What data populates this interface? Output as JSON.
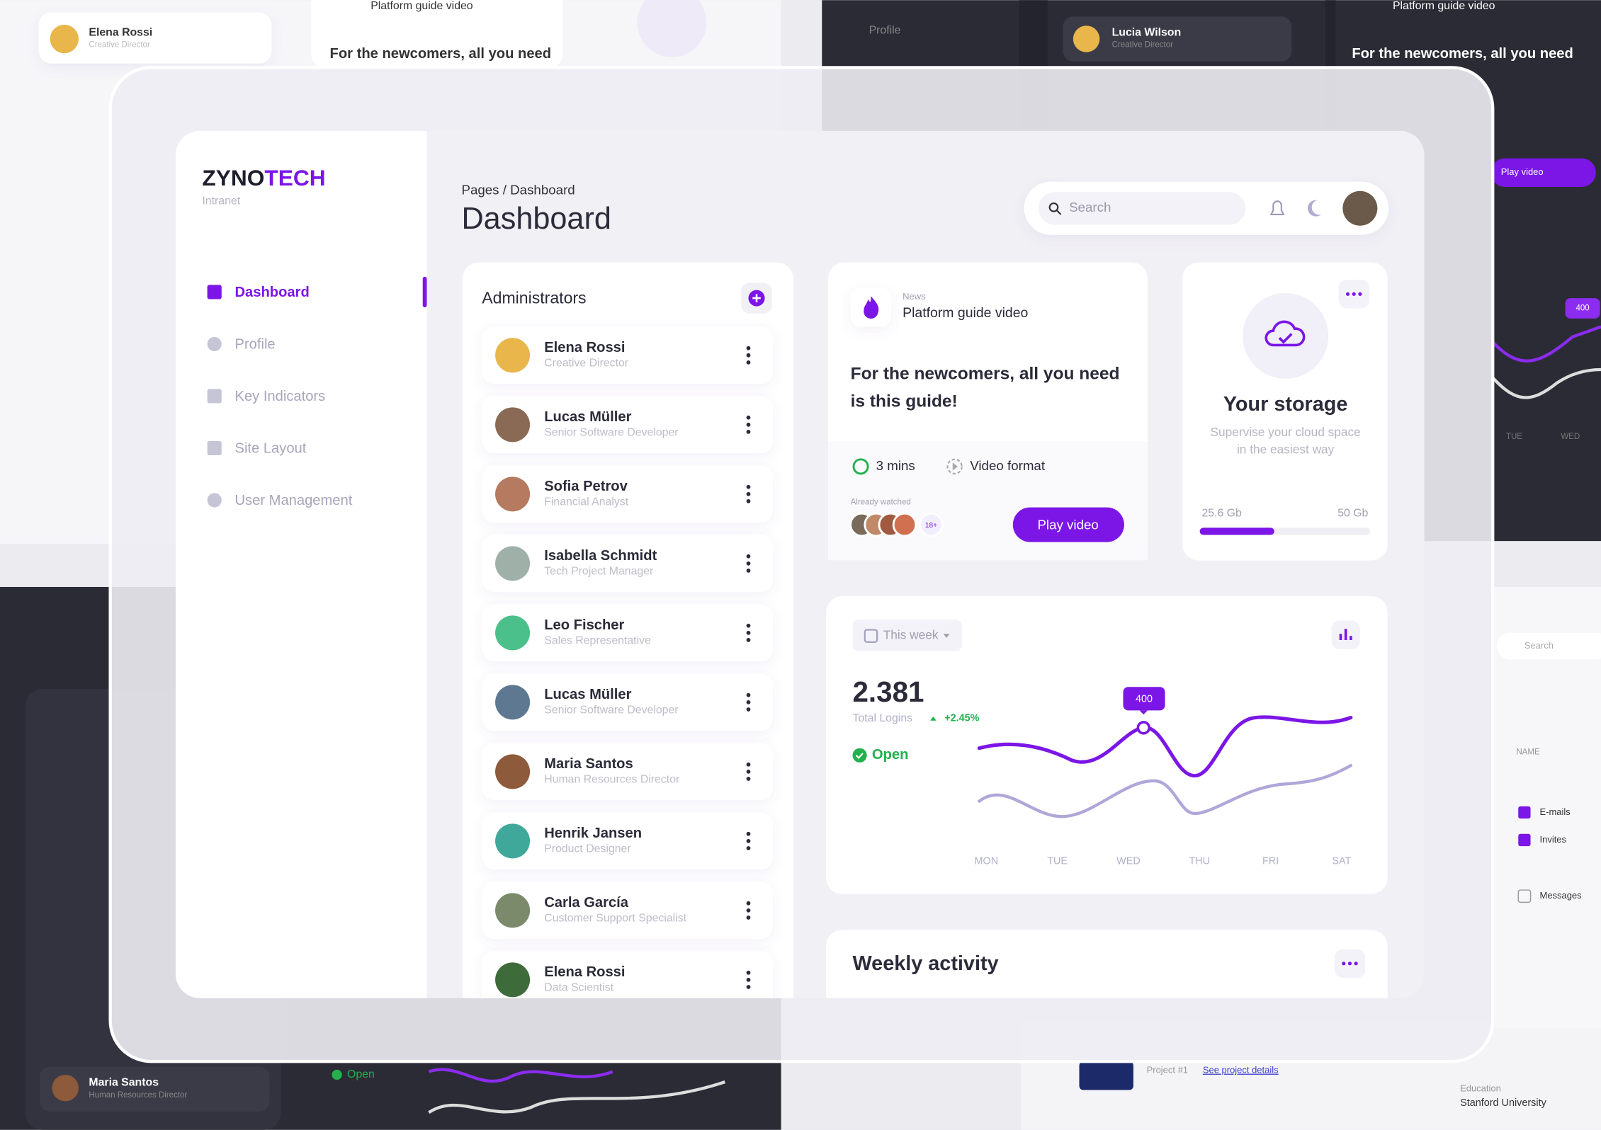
{
  "brand": {
    "name_a": "ZYNO",
    "name_b": "TECH",
    "subtitle": "Intranet"
  },
  "nav": [
    "Dashboard",
    "Profile",
    "Key Indicators",
    "Site Layout",
    "User Management"
  ],
  "header": {
    "breadcrumb": "Pages / Dashboard",
    "title": "Dashboard",
    "search_placeholder": "Search"
  },
  "administrators": {
    "title": "Administrators",
    "items": [
      {
        "name": "Elena Rossi",
        "role": "Creative Director"
      },
      {
        "name": "Lucas Müller",
        "role": "Senior Software Developer"
      },
      {
        "name": "Sofia Petrov",
        "role": "Financial Analyst"
      },
      {
        "name": "Isabella Schmidt",
        "role": "Tech Project Manager"
      },
      {
        "name": "Leo Fischer",
        "role": "Sales Representative"
      },
      {
        "name": "Lucas Müller",
        "role": "Senior Software Developer"
      },
      {
        "name": "Maria Santos",
        "role": "Human Resources Director"
      },
      {
        "name": "Henrik Jansen",
        "role": "Product Designer"
      },
      {
        "name": "Carla García",
        "role": "Customer Support Specialist"
      },
      {
        "name": "Elena Rossi",
        "role": "Data Scientist"
      }
    ]
  },
  "news": {
    "tag": "News",
    "title": "Platform guide video",
    "headline": [
      "For the newcomers, all you need",
      "is this guide!"
    ],
    "duration": "3 mins",
    "format": "Video format",
    "watched_label": "Already watched",
    "watched_more": "18+",
    "button": "Play video"
  },
  "storage": {
    "title": "Your storage",
    "description": [
      "Supervise your cloud space",
      "in the easiest way"
    ],
    "used": "25.6 Gb",
    "total": "50 Gb"
  },
  "logins": {
    "period": "This week",
    "value": "2.381",
    "label": "Total Logins",
    "change": "+2.45%",
    "status": "Open",
    "marker": "400",
    "days": [
      "MON",
      "TUE",
      "WED",
      "THU",
      "FRI",
      "SAT"
    ]
  },
  "weekly": {
    "title": "Weekly activity"
  },
  "background": {
    "top_card": {
      "name": "Elena Rossi",
      "role": "Creative Director"
    },
    "video_title": "Platform guide video",
    "headline_part": "For the newcomers, all you need",
    "profile": "Profile",
    "dark_card": {
      "name": "Lucia Wilson",
      "role": "Creative Director"
    },
    "play": "Play video",
    "marker": "400",
    "days": [
      "TUE",
      "WED"
    ],
    "bottom_card": {
      "name": "Maria Santos",
      "role": "Human Resources Director"
    },
    "open": "Open",
    "project": "Project #1",
    "project_link": "See project details",
    "education": "Education",
    "school": "Stanford University",
    "search": "Search",
    "column": "NAME",
    "options": [
      "E-mails",
      "Invites",
      "Messages"
    ]
  }
}
